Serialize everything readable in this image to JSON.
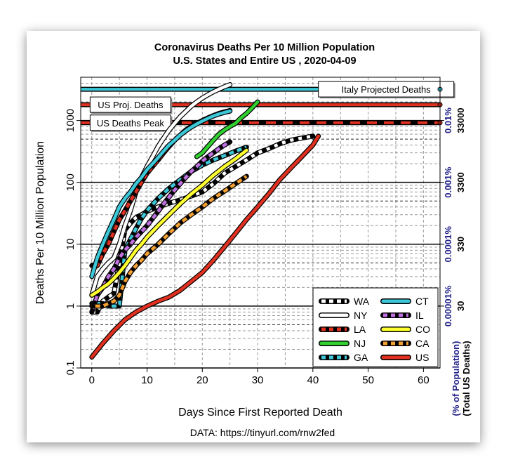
{
  "chart_data": {
    "type": "line",
    "title": "Coronavirus Deaths Per 10 Million Population",
    "subtitle": "U.S. States and Entire US , 2020-04-09",
    "xlabel": "Days Since First Reported Death",
    "ylabel": "Deaths Per 10 Million Population",
    "right_axis_label_1": "(% of Population)",
    "right_axis_label_2": "(Total US Deaths)",
    "source": "DATA: https://tinyurl.com/rnw2fed",
    "xlim": [
      -2,
      63
    ],
    "ylim": [
      0.1,
      5000
    ],
    "y_scale": "log",
    "x_ticks": [
      0,
      10,
      20,
      30,
      40,
      50,
      60
    ],
    "y_ticks": [
      {
        "value": 0.1,
        "label": "0.1"
      },
      {
        "value": 1,
        "label": "1"
      },
      {
        "value": 10,
        "label": "10"
      },
      {
        "value": 100,
        "label": "100"
      },
      {
        "value": 1000,
        "label": "1000"
      }
    ],
    "right_ticks": [
      {
        "value": 1,
        "pct": "0.00001%",
        "total": "30"
      },
      {
        "value": 10,
        "pct": "0.0001%",
        "total": "330"
      },
      {
        "value": 100,
        "pct": "0.001%",
        "total": "3300"
      },
      {
        "value": 1000,
        "pct": "0.01%",
        "total": "33000"
      }
    ],
    "reference_lines": [
      {
        "name": "Italy Projected Deaths",
        "value": 3200,
        "color": "#3cc8d8",
        "style": "solid"
      },
      {
        "name": "US Proj. Deaths",
        "value": 1800,
        "color": "#e03020",
        "style": "solid"
      },
      {
        "name": "US Deaths Peak",
        "value": 920,
        "color": "#e03020",
        "style": "dashed"
      }
    ],
    "grid": true,
    "legend_position": "bottom-right",
    "series": [
      {
        "name": "WA",
        "color": "#000000",
        "dash": true,
        "x": [
          0,
          1,
          2,
          3,
          4,
          5,
          6,
          7,
          8,
          9,
          10,
          12,
          14,
          16,
          18,
          20,
          22,
          24,
          26,
          28,
          30,
          32,
          34,
          36,
          38,
          40
        ],
        "y": [
          0.8,
          0.8,
          1.2,
          1.4,
          1.6,
          5,
          17,
          22,
          27,
          30,
          34,
          40,
          46,
          52,
          60,
          70,
          95,
          140,
          180,
          230,
          300,
          350,
          420,
          480,
          520,
          560
        ]
      },
      {
        "name": "NY",
        "color": "#ffffff",
        "dash": false,
        "x": [
          0,
          1,
          2,
          3,
          4,
          5,
          6,
          7,
          8,
          9,
          10,
          11,
          12,
          13,
          14,
          15,
          16,
          17,
          18,
          19,
          20,
          21,
          22,
          23,
          24,
          25
        ],
        "y": [
          1.5,
          3,
          4,
          5,
          6,
          10,
          20,
          35,
          70,
          120,
          180,
          260,
          380,
          520,
          700,
          900,
          1150,
          1400,
          1700,
          2000,
          2300,
          2600,
          2900,
          3200,
          3500,
          3800
        ]
      },
      {
        "name": "LA",
        "color": "#e03020",
        "dash": true,
        "x": [
          0,
          1,
          2,
          3,
          4,
          5,
          6,
          7,
          8,
          9,
          10,
          11,
          12,
          13,
          14,
          15,
          16,
          17,
          18,
          19,
          20,
          21,
          22,
          23,
          24,
          25
        ],
        "y": [
          4.5,
          4.5,
          7,
          10,
          16,
          25,
          35,
          50,
          70,
          100,
          140,
          180,
          230,
          300,
          380,
          480,
          580,
          700,
          800,
          900,
          1000,
          1100,
          1200,
          1300,
          1380,
          1450
        ]
      },
      {
        "name": "NJ",
        "color": "#30d030",
        "dash": false,
        "x": [
          19,
          20,
          21,
          22,
          23,
          24,
          25,
          26,
          27,
          28,
          29,
          30
        ],
        "y": [
          260,
          300,
          380,
          480,
          600,
          700,
          800,
          900,
          1100,
          1300,
          1600,
          2000
        ]
      },
      {
        "name": "GA",
        "color": "#3cc8d8",
        "dash": true,
        "x": [
          0,
          1,
          2,
          3,
          4,
          5,
          6,
          7,
          8,
          9,
          10,
          12,
          14,
          16,
          18,
          20,
          22,
          24,
          26,
          28
        ],
        "y": [
          1.1,
          1.1,
          1.1,
          1,
          1,
          1,
          8,
          12,
          18,
          26,
          35,
          55,
          80,
          110,
          150,
          190,
          230,
          270,
          320,
          370
        ]
      },
      {
        "name": "CT",
        "color": "#3cc8d8",
        "dash": false,
        "x": [
          0,
          1,
          2,
          3,
          4,
          5,
          6,
          7,
          8,
          9,
          10,
          11,
          12,
          13,
          14,
          15,
          16,
          17,
          18,
          19,
          20,
          21,
          22,
          23,
          24,
          25
        ],
        "y": [
          3,
          6,
          10,
          16,
          25,
          40,
          55,
          70,
          95,
          120,
          160,
          200,
          250,
          320,
          400,
          480,
          580,
          680,
          780,
          880,
          980,
          1080,
          1180,
          1270,
          1350,
          1420
        ]
      },
      {
        "name": "IL",
        "color": "#c070e0",
        "dash": true,
        "x": [
          0,
          1,
          2,
          3,
          4,
          5,
          6,
          7,
          8,
          9,
          10,
          11,
          12,
          13,
          14,
          15,
          16,
          17,
          18,
          19,
          20,
          21,
          22,
          23,
          24,
          25
        ],
        "y": [
          0.8,
          1.5,
          2,
          3,
          4,
          6,
          8,
          10,
          13,
          16,
          20,
          26,
          34,
          45,
          58,
          75,
          95,
          120,
          150,
          180,
          220,
          260,
          300,
          350,
          400,
          450
        ]
      },
      {
        "name": "CO",
        "color": "#ffff30",
        "dash": false,
        "x": [
          0,
          1,
          2,
          3,
          4,
          5,
          6,
          7,
          8,
          9,
          10,
          12,
          14,
          16,
          18,
          20,
          22,
          24,
          26,
          28
        ],
        "y": [
          1.5,
          1.7,
          2,
          2.3,
          2.8,
          3.5,
          4.5,
          6,
          8,
          10,
          13,
          20,
          30,
          45,
          65,
          90,
          130,
          180,
          240,
          330
        ]
      },
      {
        "name": "CA",
        "color": "#f5a030",
        "dash": true,
        "x": [
          0,
          1,
          2,
          3,
          4,
          5,
          6,
          7,
          8,
          9,
          10,
          12,
          14,
          16,
          18,
          20,
          22,
          24,
          26,
          28
        ],
        "y": [
          1,
          1,
          1,
          1.1,
          1.2,
          1.5,
          2.5,
          3.5,
          4.5,
          5.5,
          7,
          10,
          15,
          22,
          30,
          40,
          55,
          72,
          95,
          125
        ]
      },
      {
        "name": "US",
        "color": "#e03020",
        "dash": false,
        "x": [
          0,
          2,
          4,
          6,
          8,
          10,
          12,
          14,
          16,
          18,
          20,
          22,
          24,
          26,
          28,
          30,
          32,
          34,
          36,
          38,
          40,
          41
        ],
        "y": [
          0.15,
          0.25,
          0.4,
          0.6,
          0.8,
          1,
          1.2,
          1.4,
          1.8,
          2.5,
          3.5,
          5.5,
          9,
          15,
          25,
          40,
          65,
          110,
          170,
          260,
          400,
          560
        ]
      }
    ],
    "legend_order": [
      "WA",
      "CT",
      "NY",
      "IL",
      "LA",
      "CO",
      "NJ",
      "CA",
      "GA",
      "US"
    ]
  }
}
